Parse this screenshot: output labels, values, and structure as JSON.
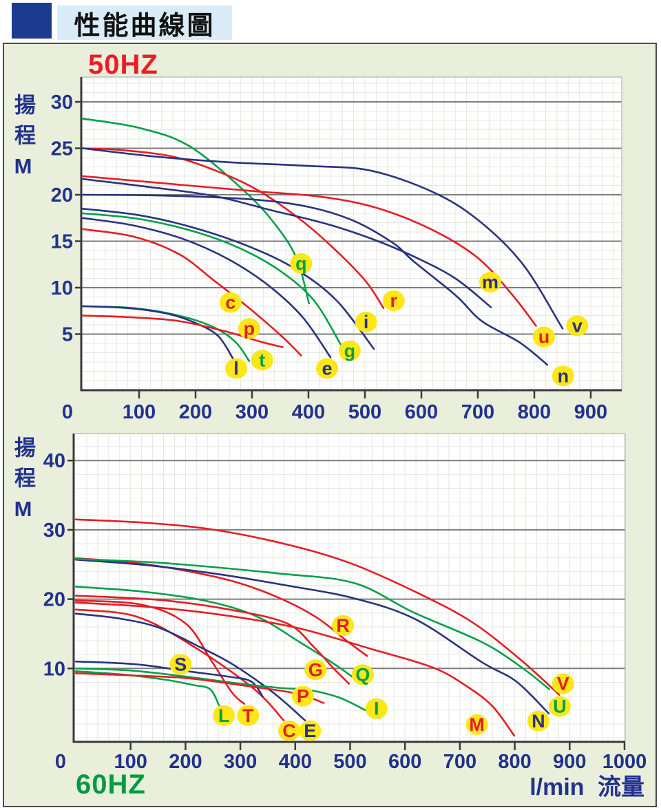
{
  "header": {
    "title": "性能曲線圖"
  },
  "footer": {
    "x_unit": "l/min",
    "x_unit_cn": "流量"
  },
  "colors": {
    "red": "#e71c23",
    "blue": "#283380",
    "green": "#00a14a",
    "axis_text": "#21318e",
    "label_bg": "#ffe617",
    "grid_major": "#7d7d7d",
    "grid_minor": "#e3e9df",
    "panel_bg": "#e9efda",
    "plot_bg": "#ffffff",
    "axis_line": "#3a3a3a",
    "border_thin": "#b5b5b5",
    "title_square": "#1c3b90",
    "title_strip": "#d9ecf8",
    "freq50": "#ed1c24",
    "freq60": "#009a44"
  },
  "chart_data": [
    {
      "type": "line",
      "title": "50HZ",
      "title_color": "red",
      "y_axis_label": "揚程M",
      "x_unit": "l/min",
      "xlim": [
        0,
        955
      ],
      "ylim": [
        0,
        32.5
      ],
      "x_ticks": [
        0,
        100,
        200,
        300,
        400,
        500,
        600,
        700,
        800,
        900
      ],
      "y_ticks": [
        30,
        25,
        20,
        15,
        10,
        5
      ],
      "x_minor_step": 20,
      "y_minor_step": 1,
      "grid": "minor-both, major-horizontal",
      "legend": "labels-on-curves",
      "series": [
        {
          "name": "q",
          "color": "green",
          "label_at": [
            387,
            12.6
          ],
          "points": [
            [
              0,
              28.2
            ],
            [
              100,
              27.2
            ],
            [
              190,
              25.2
            ],
            [
              290,
              20.2
            ],
            [
              345,
              16.5
            ],
            [
              380,
              13
            ],
            [
              401,
              8.3
            ]
          ]
        },
        {
          "name": "r",
          "color": "red",
          "label_at": [
            551,
            8.6
          ],
          "points": [
            [
              0,
              25
            ],
            [
              70,
              24.8
            ],
            [
              160,
              24.1
            ],
            [
              240,
              22.5
            ],
            [
              310,
              20.5
            ],
            [
              380,
              17.6
            ],
            [
              440,
              14.5
            ],
            [
              500,
              10.8
            ],
            [
              533,
              7.8
            ]
          ]
        },
        {
          "name": "v",
          "color": "blue",
          "label_at": [
            876,
            5.9
          ],
          "points": [
            [
              0,
              25
            ],
            [
              130,
              24.1
            ],
            [
              260,
              23.5
            ],
            [
              400,
              23.1
            ],
            [
              510,
              22.6
            ],
            [
              620,
              20.3
            ],
            [
              700,
              17.3
            ],
            [
              780,
              12.5
            ],
            [
              850,
              5.6
            ]
          ]
        },
        {
          "name": "u",
          "color": "red",
          "label_at": [
            817,
            4.7
          ],
          "points": [
            [
              0,
              22
            ],
            [
              150,
              21.2
            ],
            [
              300,
              20.4
            ],
            [
              420,
              19.8
            ],
            [
              520,
              18.6
            ],
            [
              620,
              16.2
            ],
            [
              700,
              13.2
            ],
            [
              760,
              9.3
            ],
            [
              803,
              5.9
            ]
          ]
        },
        {
          "name": "m",
          "color": "blue",
          "label_at": [
            722,
            10.6
          ],
          "points": [
            [
              0,
              21.7
            ],
            [
              110,
              20.9
            ],
            [
              230,
              19.9
            ],
            [
              330,
              18.4
            ],
            [
              430,
              16.9
            ],
            [
              510,
              15.3
            ],
            [
              585,
              13.4
            ],
            [
              660,
              11
            ],
            [
              723,
              7.9
            ]
          ]
        },
        {
          "name": "n",
          "color": "blue",
          "label_at": [
            851,
            0.5
          ],
          "points": [
            [
              0,
              20
            ],
            [
              150,
              19.9
            ],
            [
              300,
              19.5
            ],
            [
              400,
              18.7
            ],
            [
              480,
              17.2
            ],
            [
              550,
              14.8
            ],
            [
              585,
              12.9
            ],
            [
              662,
              9.1
            ],
            [
              707,
              6.4
            ],
            [
              774,
              4.1
            ],
            [
              823,
              1.7
            ]
          ]
        },
        {
          "name": "i",
          "color": "blue",
          "label_at": [
            502,
            6.3
          ],
          "points": [
            [
              0,
              18.5
            ],
            [
              100,
              17.8
            ],
            [
              200,
              16.4
            ],
            [
              300,
              14.3
            ],
            [
              380,
              11.9
            ],
            [
              450,
              8.6
            ],
            [
              516,
              3.4
            ]
          ]
        },
        {
          "name": "g",
          "color": "green",
          "label_at": [
            473,
            3.2
          ],
          "points": [
            [
              0,
              18
            ],
            [
              100,
              17.4
            ],
            [
              200,
              16
            ],
            [
              280,
              14.2
            ],
            [
              350,
              11.8
            ],
            [
              410,
              8.6
            ],
            [
              457,
              3.9
            ]
          ]
        },
        {
          "name": "e",
          "color": "blue",
          "label_at": [
            433,
            1.3
          ],
          "points": [
            [
              0,
              17.5
            ],
            [
              90,
              16.7
            ],
            [
              180,
              15.2
            ],
            [
              260,
              13
            ],
            [
              330,
              10.2
            ],
            [
              390,
              6.8
            ],
            [
              439,
              2.5
            ]
          ]
        },
        {
          "name": "c",
          "color": "red",
          "label_at": [
            262,
            8.4
          ],
          "points": [
            [
              0,
              16.3
            ],
            [
              90,
              15.5
            ],
            [
              171,
              13.6
            ],
            [
              232,
              10.8
            ],
            [
              293,
              7.9
            ],
            [
              354,
              4.7
            ],
            [
              387,
              2.7
            ]
          ]
        },
        {
          "name": "t",
          "color": "green",
          "label_at": [
            318,
            2.2
          ],
          "points": [
            [
              0,
              8
            ],
            [
              90,
              7.8
            ],
            [
              170,
              7
            ],
            [
              230,
              5.8
            ],
            [
              270,
              4.2
            ],
            [
              295,
              2.1
            ]
          ]
        },
        {
          "name": "l",
          "color": "blue",
          "label_at": [
            272,
            1.3
          ],
          "points": [
            [
              0,
              8
            ],
            [
              80,
              7.8
            ],
            [
              150,
              7.2
            ],
            [
              200,
              6.2
            ],
            [
              240,
              4.8
            ],
            [
              266,
              2.4
            ]
          ]
        },
        {
          "name": "p",
          "color": "red",
          "label_at": [
            295,
            5.6
          ],
          "points": [
            [
              0,
              7
            ],
            [
              90,
              6.8
            ],
            [
              171,
              6.4
            ],
            [
              253,
              5.3
            ],
            [
              314,
              4.2
            ],
            [
              354,
              3.6
            ]
          ]
        }
      ]
    },
    {
      "type": "line",
      "title": "60HZ",
      "title_color": "green",
      "y_axis_label": "揚程M",
      "x_unit": "l/min",
      "xlim": [
        0,
        1001
      ],
      "ylim": [
        0,
        44
      ],
      "x_ticks": [
        0,
        100,
        200,
        300,
        400,
        500,
        600,
        700,
        800,
        900,
        1000
      ],
      "y_ticks": [
        40,
        30,
        20,
        10
      ],
      "x_minor_step": 20,
      "y_minor_step": 2,
      "grid": "minor-both, major-horizontal",
      "legend": "labels-on-curves",
      "series": [
        {
          "name": "V",
          "color": "red",
          "label_at": [
            888,
            7.8
          ],
          "points": [
            [
              0,
              31.5
            ],
            [
              130,
              31
            ],
            [
              253,
              30
            ],
            [
              390,
              27.8
            ],
            [
              500,
              25.2
            ],
            [
              615,
              21.2
            ],
            [
              720,
              16.8
            ],
            [
              810,
              11.3
            ],
            [
              881,
              6.2
            ]
          ]
        },
        {
          "name": "R",
          "color": "red",
          "label_at": [
            487,
            16.2
          ],
          "points": [
            [
              0,
              25.9
            ],
            [
              100,
              25.3
            ],
            [
              200,
              24.1
            ],
            [
              290,
              22.5
            ],
            [
              370,
              20.2
            ],
            [
              440,
              17.3
            ],
            [
              495,
              13.9
            ],
            [
              531,
              11.8
            ]
          ]
        },
        {
          "name": "N",
          "color": "blue",
          "label_at": [
            843,
            2.4
          ],
          "points": [
            [
              0,
              25.7
            ],
            [
              130,
              24.9
            ],
            [
              260,
              23.6
            ],
            [
              390,
              21.9
            ],
            [
              508,
              20.1
            ],
            [
              619,
              17.1
            ],
            [
              740,
              10.9
            ],
            [
              803,
              8.1
            ],
            [
              862,
              3.5
            ]
          ]
        },
        {
          "name": "U",
          "color": "green",
          "label_at": [
            882,
            4.5
          ],
          "points": [
            [
              0,
              25.8
            ],
            [
              161,
              25.2
            ],
            [
              370,
              23.7
            ],
            [
              508,
              22.3
            ],
            [
              615,
              18.1
            ],
            [
              740,
              13.8
            ],
            [
              810,
              10.3
            ],
            [
              863,
              7
            ]
          ]
        },
        {
          "name": "Q",
          "color": "green",
          "label_at": [
            523,
            9.1
          ],
          "points": [
            [
              0,
              21.8
            ],
            [
              120,
              21.1
            ],
            [
              240,
              19.7
            ],
            [
              330,
              17.5
            ],
            [
              408,
              13.8
            ],
            [
              470,
              10.7
            ],
            [
              511,
              8.4
            ]
          ]
        },
        {
          "name": "G",
          "color": "red",
          "label_at": [
            437,
            9.8
          ],
          "points": [
            [
              0,
              20.5
            ],
            [
              150,
              19.9
            ],
            [
              280,
              18.5
            ],
            [
              385,
              16.5
            ],
            [
              435,
              13
            ],
            [
              470,
              10
            ],
            [
              498,
              7.8
            ]
          ]
        },
        {
          "name": "T",
          "color": "red",
          "label_at": [
            314,
            3.2
          ],
          "points": [
            [
              0,
              19.8
            ],
            [
              120,
              19.2
            ],
            [
              200,
              16.5
            ],
            [
              248,
              11
            ],
            [
              285,
              6.5
            ],
            [
              307,
              4.9
            ]
          ]
        },
        {
          "name": "M",
          "color": "red",
          "label_at": [
            731,
            1.9
          ],
          "points": [
            [
              0,
              19.5
            ],
            [
              130,
              18.9
            ],
            [
              260,
              17.8
            ],
            [
              401,
              15.9
            ],
            [
              539,
              12.8
            ],
            [
              652,
              10.1
            ],
            [
              713,
              7.4
            ],
            [
              760,
              4.5
            ],
            [
              799,
              0.3
            ]
          ]
        },
        {
          "name": "C",
          "color": "red",
          "label_at": [
            389,
            1.0
          ],
          "points": [
            [
              0,
              18.5
            ],
            [
              110,
              17.5
            ],
            [
              216,
              13.1
            ],
            [
              324,
              7.1
            ],
            [
              379,
              2.5
            ]
          ]
        },
        {
          "name": "E",
          "color": "blue",
          "label_at": [
            427,
            1.0
          ],
          "points": [
            [
              0,
              17.9
            ],
            [
              80,
              17.2
            ],
            [
              151,
              15.9
            ],
            [
              226,
              13.1
            ],
            [
              286,
              10.6
            ],
            [
              360,
              6.5
            ],
            [
              418,
              2.5
            ]
          ]
        },
        {
          "name": "S",
          "color": "blue",
          "label_at": [
            191,
            10.6
          ],
          "points": [
            [
              0,
              11
            ],
            [
              110,
              10.6
            ],
            [
              203,
              9.6
            ],
            [
              280,
              8.8
            ],
            [
              320,
              8.1
            ],
            [
              341,
              5.9
            ]
          ]
        },
        {
          "name": "I",
          "color": "green",
          "label_at": [
            548,
            4.2
          ],
          "points": [
            [
              0,
              10
            ],
            [
              100,
              9.7
            ],
            [
              203,
              8.8
            ],
            [
              300,
              7.8
            ],
            [
              370,
              7.2
            ],
            [
              424,
              6.9
            ],
            [
              480,
              5.8
            ],
            [
              527,
              4
            ]
          ]
        },
        {
          "name": "L",
          "color": "green",
          "label_at": [
            270,
            3.2
          ],
          "points": [
            [
              0,
              9.6
            ],
            [
              90,
              9.1
            ],
            [
              161,
              8.4
            ],
            [
              215,
              7.6
            ],
            [
              245,
              7
            ],
            [
              261,
              4.7
            ]
          ]
        },
        {
          "name": "P",
          "color": "red",
          "label_at": [
            414,
            6.0
          ],
          "points": [
            [
              0,
              9.3
            ],
            [
              100,
              9
            ],
            [
              203,
              8.6
            ],
            [
              300,
              7.6
            ],
            [
              401,
              6.4
            ],
            [
              452,
              5
            ]
          ]
        }
      ]
    }
  ]
}
